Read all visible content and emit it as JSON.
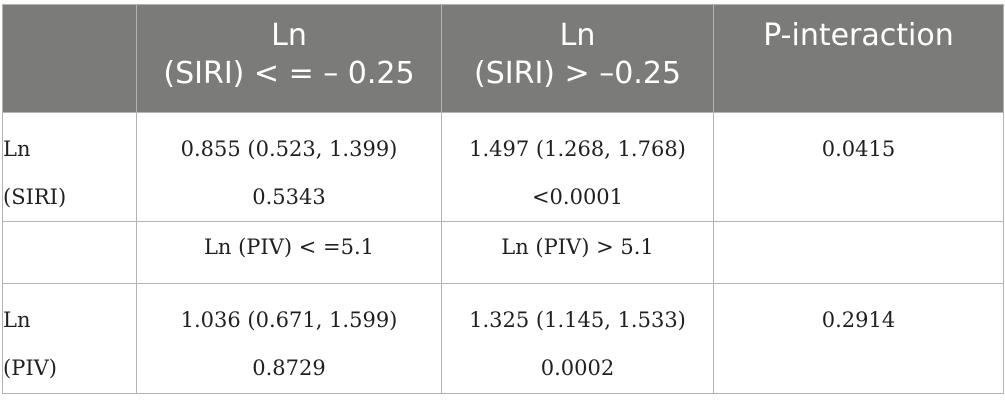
{
  "table": {
    "header": {
      "col0": "",
      "col1_line1": "Ln",
      "col1_line2": "(SIRI) < = – 0.25",
      "col2_line1": "Ln",
      "col2_line2": "(SIRI) > –0.25",
      "col3": "P-interaction"
    },
    "rows": [
      {
        "label_line1": "Ln",
        "label_line2": "(SIRI)",
        "c1_line1": "0.855 (0.523, 1.399)",
        "c1_line2": "0.5343",
        "c2_line1": "1.497 (1.268, 1.768)",
        "c2_line2": "<0.0001",
        "p": "0.0415"
      },
      {
        "label": "",
        "c1": "Ln (PIV) < =5.1",
        "c2": "Ln (PIV) > 5.1",
        "p": ""
      },
      {
        "label_line1": "Ln",
        "label_line2": "(PIV)",
        "c1_line1": "1.036 (0.671, 1.599)",
        "c1_line2": "0.8729",
        "c2_line1": "1.325 (1.145, 1.533)",
        "c2_line2": "0.0002",
        "p": "0.2914"
      }
    ],
    "colors": {
      "header_bg": "#7b7b79",
      "header_text": "#ffffff",
      "border": "#b3b3b3",
      "body_text": "#231f20"
    }
  }
}
